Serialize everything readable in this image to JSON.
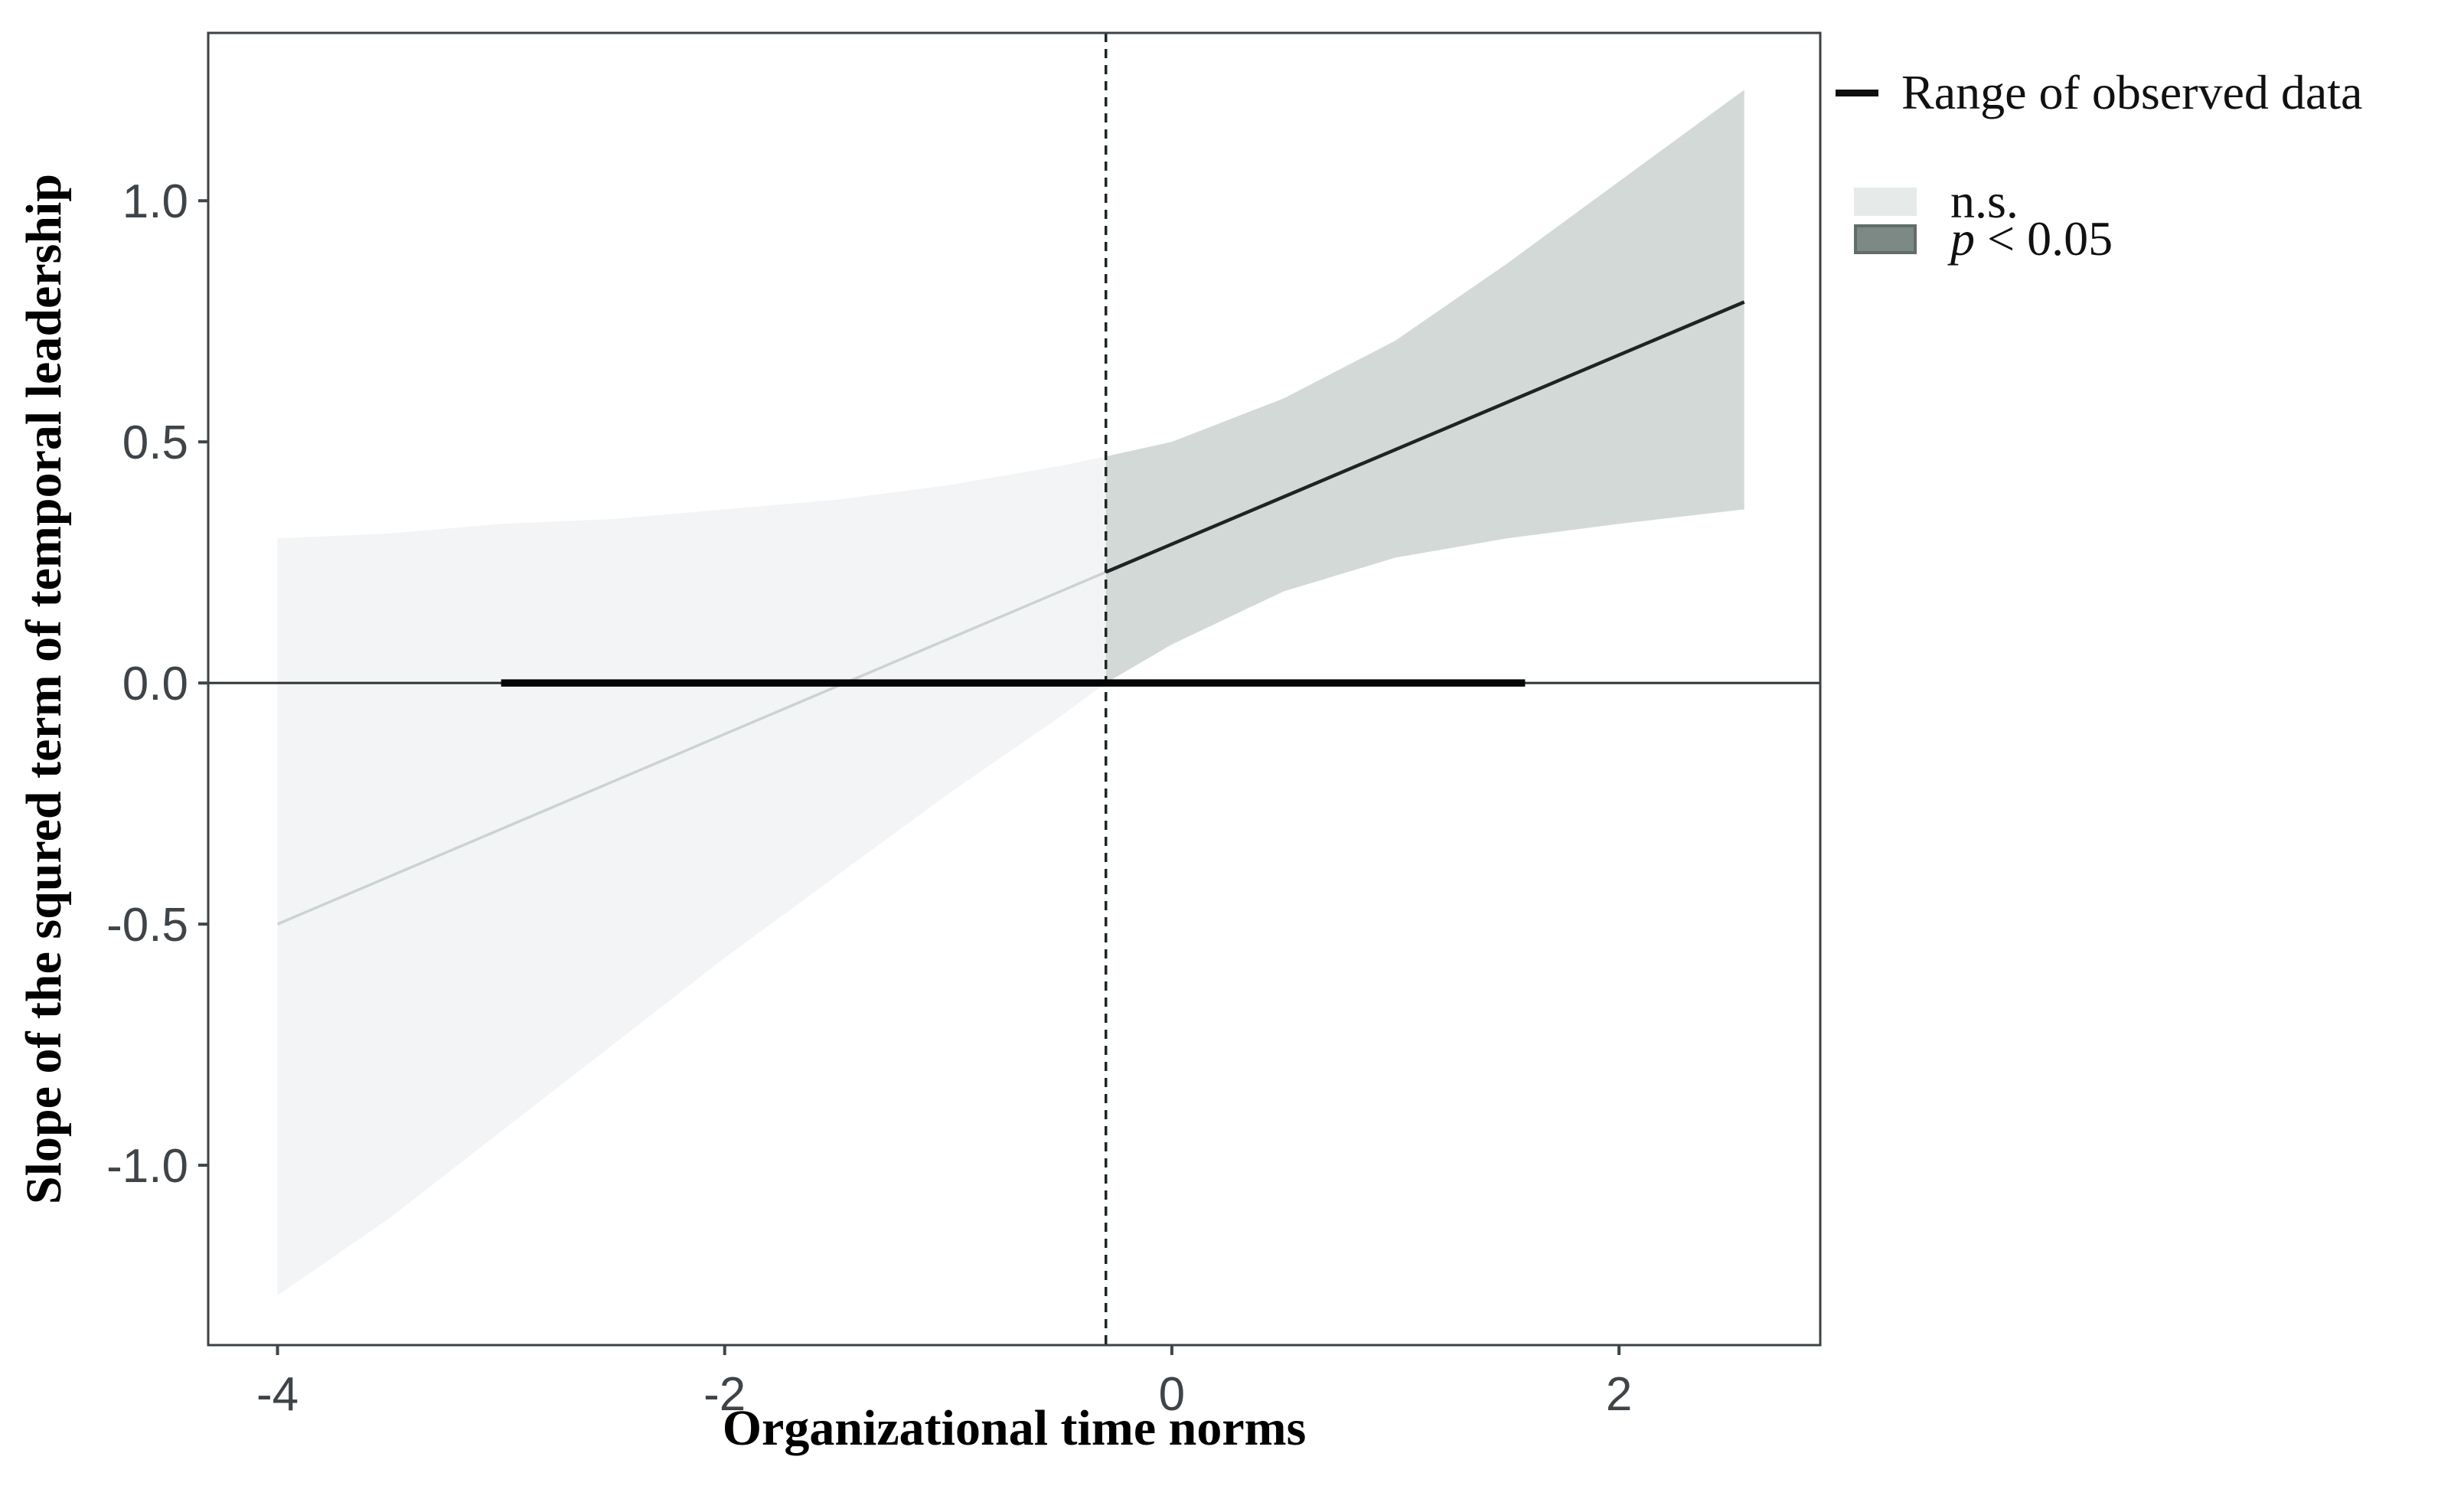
{
  "chart_data": {
    "type": "area",
    "title": "",
    "xlabel": "Organizational time norms",
    "ylabel": "Slope of the squred term of temporal leadership",
    "grid": false,
    "legend_position": "right-top-outside",
    "x_range": [
      -4.31,
      2.9
    ],
    "y_range": [
      -1.373,
      1.348
    ],
    "x_ticks": [
      {
        "v": -4,
        "label": "-4"
      },
      {
        "v": -2,
        "label": "-2"
      },
      {
        "v": 0,
        "label": "0"
      },
      {
        "v": 2,
        "label": "2"
      }
    ],
    "y_ticks": [
      {
        "v": 1.0,
        "label": "1.0"
      },
      {
        "v": 0.5,
        "label": "0.5"
      },
      {
        "v": 0.0,
        "label": "0.0"
      },
      {
        "v": -0.5,
        "label": "-0.5"
      },
      {
        "v": -1.0,
        "label": "-1.0"
      }
    ],
    "jn_boundary": {
      "x": -0.295,
      "color": "#1e2627",
      "width": 3.5,
      "dash": [
        12,
        9
      ]
    },
    "zero_line": {
      "y": 0,
      "color": "#2c3435",
      "width": 3
    },
    "observed_data_range": {
      "y": 0,
      "x_start": -3.0,
      "x_end": 1.58,
      "color": "#050505",
      "width": 9.5
    },
    "panel_border_color": "#3b4245",
    "tick_color": "#3f4649",
    "series": [
      {
        "name": "confidence band n.s.",
        "kind": "band",
        "color": "#f2f4f5",
        "x": [
          -4.0,
          -3.5,
          -3.0,
          -2.5,
          -2.0,
          -1.5,
          -1.0,
          -0.5,
          -0.295
        ],
        "upper": [
          0.3,
          0.31,
          0.33,
          0.34,
          0.36,
          0.38,
          0.41,
          0.45,
          0.47
        ],
        "lower": [
          -1.27,
          -1.11,
          -0.93,
          -0.75,
          -0.57,
          -0.4,
          -0.23,
          -0.07,
          0.0
        ]
      },
      {
        "name": "confidence band p<0.05",
        "kind": "band",
        "color": "#d3d9d7",
        "x": [
          -0.295,
          0.0,
          0.5,
          1.0,
          1.5,
          2.0,
          2.56
        ],
        "upper": [
          0.47,
          0.5,
          0.59,
          0.71,
          0.87,
          1.04,
          1.23
        ],
        "lower": [
          0.0,
          0.08,
          0.19,
          0.26,
          0.3,
          0.33,
          0.36
        ]
      },
      {
        "name": "simple slope n.s.",
        "kind": "line",
        "color": "#cbd3d2",
        "width": 3.5,
        "x": [
          -4.0,
          -0.295
        ],
        "y": [
          -0.5,
          0.23
        ]
      },
      {
        "name": "simple slope p<0.05",
        "kind": "line",
        "color": "#1c2424",
        "width": 4.5,
        "x": [
          -0.295,
          2.56
        ],
        "y": [
          0.23,
          0.79
        ]
      }
    ]
  },
  "legend": {
    "items": [
      {
        "swatch": "line",
        "swatch_color": "#0f0f0f",
        "label": "Range of observed data"
      },
      {
        "swatch": "rect",
        "swatch_color": "#e6ebea",
        "label": "n.s."
      },
      {
        "swatch": "rect",
        "swatch_color": "#7c8985",
        "label_italic": "p",
        "label_rest": " < 0.05"
      }
    ]
  }
}
